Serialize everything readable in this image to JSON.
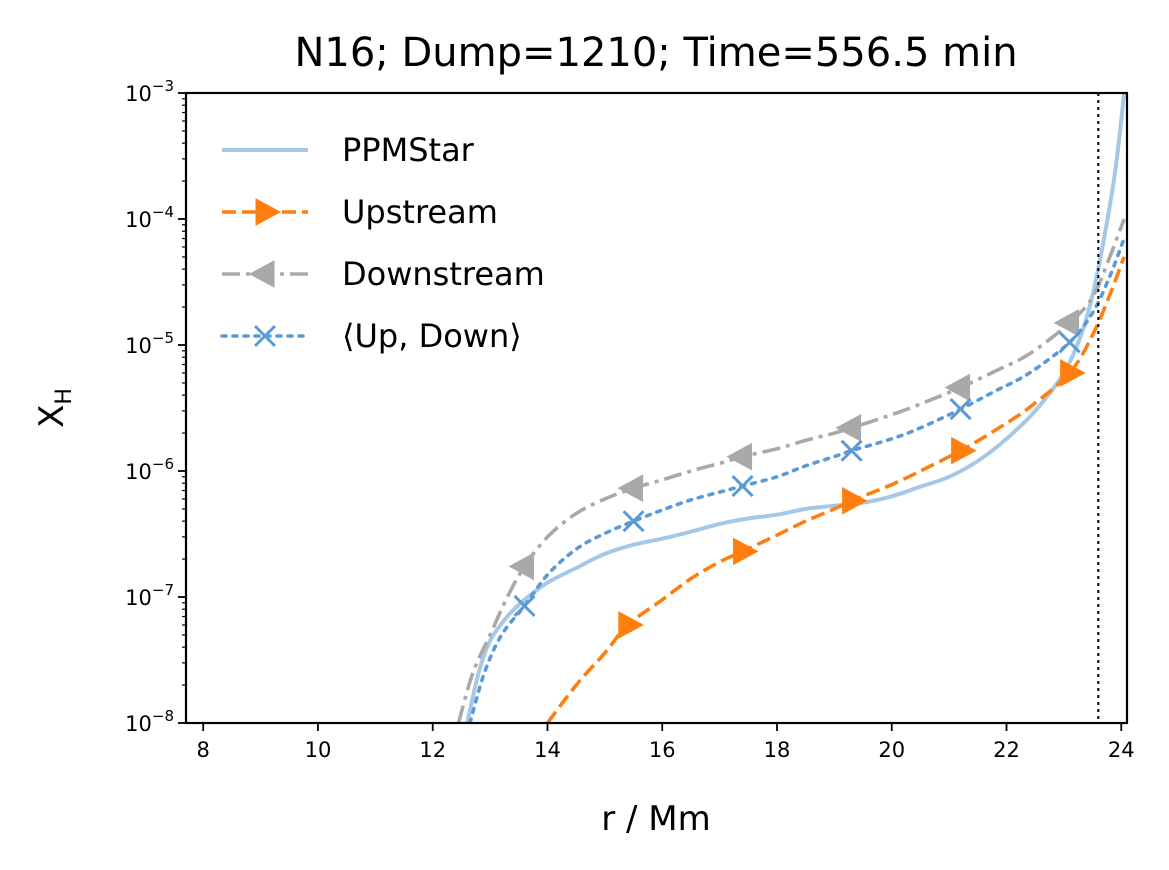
{
  "chart_data": {
    "type": "line",
    "title": "N16; Dump=1210; Time=556.5 min",
    "xlabel": "r / Mm",
    "ylabel_main": "X",
    "ylabel_sub": "H",
    "x_scale": "linear",
    "y_scale": "log",
    "xlim": [
      7.7,
      24.1
    ],
    "ylim": [
      1e-08,
      0.001
    ],
    "xticks": [
      8,
      10,
      12,
      14,
      16,
      18,
      20,
      22,
      24
    ],
    "xtick_labels": [
      "8",
      "10",
      "12",
      "14",
      "16",
      "18",
      "20",
      "22",
      "24"
    ],
    "yticks": [
      1e-08,
      1e-07,
      1e-06,
      1e-05,
      0.0001,
      0.001
    ],
    "ytick_labels": [
      {
        "base": "10",
        "exp": "−8"
      },
      {
        "base": "10",
        "exp": "−7"
      },
      {
        "base": "10",
        "exp": "−6"
      },
      {
        "base": "10",
        "exp": "−5"
      },
      {
        "base": "10",
        "exp": "−4"
      },
      {
        "base": "10",
        "exp": "−3"
      }
    ],
    "grid": false,
    "legend_position": "upper-left",
    "vline": {
      "x": 23.6,
      "style": "dotted",
      "color": "#000000"
    },
    "series": [
      {
        "name": "PPMStar",
        "color": "#a6c8e8",
        "dash": "solid",
        "marker": "none",
        "x": [
          12.6,
          12.8,
          13.0,
          13.3,
          13.6,
          14.0,
          14.5,
          15.0,
          15.5,
          16.0,
          16.5,
          17.0,
          17.5,
          18.0,
          18.5,
          19.0,
          19.5,
          20.0,
          20.5,
          21.0,
          21.5,
          22.0,
          22.5,
          23.0,
          23.3,
          23.5,
          23.7,
          23.9,
          24.05
        ],
        "y": [
          1e-08,
          2.5e-08,
          4.5e-08,
          7e-08,
          9.5e-08,
          1.3e-07,
          1.7e-07,
          2.2e-07,
          2.6e-07,
          2.9e-07,
          3.3e-07,
          3.8e-07,
          4.2e-07,
          4.5e-07,
          5e-07,
          5.3e-07,
          5.6e-07,
          6.3e-07,
          7.5e-07,
          9e-07,
          1.2e-06,
          1.8e-06,
          3e-06,
          6e-06,
          1.2e-05,
          2.5e-05,
          7e-05,
          0.00025,
          0.001
        ]
      },
      {
        "name": "Upstream",
        "color": "#ff7f0e",
        "dash": "dashed",
        "marker": "triangle-right",
        "marker_x": [
          15.4,
          17.4,
          19.3,
          21.2,
          23.1
        ],
        "x": [
          14.0,
          14.5,
          15.0,
          15.4,
          16.0,
          16.5,
          17.0,
          17.4,
          18.0,
          18.5,
          19.0,
          19.3,
          20.0,
          20.5,
          21.2,
          21.8,
          22.4,
          23.1,
          23.5,
          23.8,
          24.05
        ],
        "y": [
          1e-08,
          2e-08,
          3.6e-08,
          6e-08,
          9.5e-08,
          1.4e-07,
          1.9e-07,
          2.3e-07,
          3.1e-07,
          4e-07,
          5e-07,
          5.8e-07,
          7.8e-07,
          1e-06,
          1.45e-06,
          2.1e-06,
          3.2e-06,
          6e-06,
          1.2e-05,
          2.5e-05,
          5e-05
        ]
      },
      {
        "name": "Downstream",
        "color": "#a9a9a9",
        "dash": "dashdot",
        "marker": "triangle-left",
        "marker_x": [
          13.6,
          15.5,
          17.4,
          19.3,
          21.2,
          23.1
        ],
        "x": [
          12.45,
          12.7,
          13.0,
          13.3,
          13.6,
          14.0,
          14.5,
          15.0,
          15.5,
          16.0,
          16.5,
          17.0,
          17.4,
          18.0,
          18.5,
          19.0,
          19.3,
          20.0,
          20.5,
          21.2,
          21.8,
          22.4,
          23.1,
          23.5,
          23.8,
          24.05
        ],
        "y": [
          1e-08,
          2.5e-08,
          5e-08,
          1e-07,
          1.75e-07,
          3e-07,
          4.6e-07,
          6e-07,
          7.3e-07,
          8.5e-07,
          1e-06,
          1.15e-06,
          1.3e-06,
          1.5e-06,
          1.75e-06,
          2e-06,
          2.2e-06,
          2.8e-06,
          3.4e-06,
          4.6e-06,
          6.2e-06,
          8.5e-06,
          1.5e-05,
          2.4e-05,
          5e-05,
          0.0001
        ]
      },
      {
        "name": "⟨Up, Down⟩",
        "color": "#5b9bd5",
        "dash": "dotted",
        "marker": "x",
        "marker_x": [
          13.6,
          15.5,
          17.4,
          19.3,
          21.2,
          23.1
        ],
        "x": [
          12.65,
          12.9,
          13.2,
          13.6,
          14.0,
          14.5,
          15.0,
          15.5,
          16.0,
          16.5,
          17.0,
          17.4,
          18.0,
          18.5,
          19.0,
          19.3,
          20.0,
          20.5,
          21.2,
          21.8,
          22.4,
          23.1,
          23.5,
          23.8,
          24.05
        ],
        "y": [
          1e-08,
          2.5e-08,
          5e-08,
          8.5e-08,
          1.5e-07,
          2.4e-07,
          3.2e-07,
          4e-07,
          4.9e-07,
          5.9e-07,
          6.8e-07,
          7.6e-07,
          9e-07,
          1.1e-06,
          1.3e-06,
          1.45e-06,
          1.8e-06,
          2.2e-06,
          3.1e-06,
          4.3e-06,
          6e-06,
          1.05e-05,
          1.8e-05,
          3.5e-05,
          7e-05
        ]
      }
    ]
  }
}
